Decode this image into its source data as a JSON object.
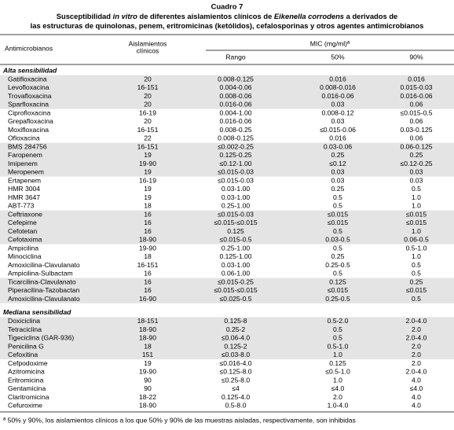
{
  "header": {
    "title": "Cuadro 7",
    "subtitle": [
      [
        "Susceptibilidad ",
        "in vitro",
        " de diferentes aislamientos clínicos de ",
        "Eikenella corrodens",
        " a derivados de"
      ],
      [
        "las estructuras de quinolonas, penem, eritromicinas (ketólidos), cefalosporinas y otros agentes antimicrobianos"
      ]
    ]
  },
  "table": {
    "columns": {
      "name": "Antimicrobianos",
      "isolates": [
        "Aislamientos",
        "clínicos"
      ],
      "mic": "MIC (mg/ml)ª",
      "range": "Rango",
      "p50": "50%",
      "p90": "90%"
    },
    "sections": [
      {
        "title": "Alta sensibilidad",
        "groups": [
          {
            "rows": [
              [
                "Gatifloxacina",
                "20",
                "0.008-0.125",
                "0.016",
                "0.016"
              ],
              [
                "Levofloxacina",
                "16-151",
                "0.004-0.06",
                "0.008-0.016",
                "0.015-0.03"
              ],
              [
                "Trovafloxacina",
                "20",
                "0.008-0.06",
                "0.016-0.06",
                "0.016-0.06"
              ],
              [
                "Sparfloxacina",
                "20",
                "0.016-0.06",
                "0.03",
                "0.06"
              ]
            ]
          },
          {
            "rows": [
              [
                "Ciprofloxacina",
                "16-19",
                "0.004-1.00",
                "0.008-0.12",
                "≤0.015-0.5"
              ],
              [
                "Grepafloxacina",
                "20",
                "0.016-0.06",
                "0.03",
                "0.06"
              ],
              [
                "Moxifloxacina",
                "16-151",
                "0.008-0.25",
                "≤0.015-0.06",
                "0.03-0.125"
              ],
              [
                "Ofloxacina",
                "22",
                "0.008-0.125",
                "0.016",
                "0.06"
              ]
            ]
          },
          {
            "rows": [
              [
                "BMS 284756",
                "16-151",
                "≤0.002-0.25",
                "0.03-0.06",
                "0.06-0.125"
              ],
              [
                "Faropenem",
                "19",
                "0.125-0.25",
                "0.25",
                "0.25"
              ],
              [
                "Imipenem",
                "19-90",
                "≤0.12-1.00",
                "≤0.12",
                "≤0.12-0.25"
              ],
              [
                "Meropenem",
                "19",
                "≤0.015-0.03",
                "0.03",
                "0.03"
              ]
            ]
          },
          {
            "rows": [
              [
                "Ertapenem",
                "16-19",
                "≤0.015-0.03",
                "0.03",
                "0.03"
              ],
              [
                "HMR 3004",
                "19",
                "0.03-1.00",
                "0.25",
                "0.5"
              ],
              [
                "HMR 3647",
                "19",
                "0.03-1.00",
                "0.5",
                "1.0"
              ],
              [
                "ABT-773",
                "18",
                "0.25-1.00",
                "0.5",
                "1.0"
              ]
            ]
          },
          {
            "rows": [
              [
                "Ceftriaxone",
                "16",
                "≤0.015-0.03",
                "≤0.015",
                "≤0.015"
              ],
              [
                "Cefepime",
                "16",
                "≤0.015-≤0.015",
                "≤0.015",
                "≤0.015"
              ],
              [
                "Cefotetan",
                "16",
                "0.125",
                "0.5",
                "1.0"
              ],
              [
                "Cefotaxima",
                "18-90",
                "≤0.015-0.5",
                "0.03-0.5",
                "0.06-0.5"
              ]
            ]
          },
          {
            "rows": [
              [
                "Ampicilina",
                "19-90",
                "0.25-1.00",
                "0.5",
                "0.5-1.0"
              ],
              [
                "Minociclina",
                "18",
                "0.125-1.00",
                "0.25",
                "1.0"
              ],
              [
                "Amoxicilina-Clavulanato",
                "16-151",
                "0.03-1.00",
                "0.25-0.5",
                "0.5"
              ],
              [
                "Ampicilina-Sulbactam",
                "16",
                "0.06-1.00",
                "0.5",
                "0.5"
              ]
            ]
          },
          {
            "rows": [
              [
                "Ticarcilina-Clavulanato",
                "16",
                "≤0.015-0.25",
                "0.125",
                "0.25"
              ],
              [
                "Piperacilina-Tazobactan",
                "16",
                "≤0.015-≤0.015",
                "≤0.015",
                "≤0.015"
              ],
              [
                "Amoxicilina-Clavulanato",
                "16-90",
                "≤0.025-0.5",
                "0.25-0.5",
                "0.5"
              ]
            ]
          }
        ]
      },
      {
        "title": "Mediana sensibilidad",
        "groups": [
          {
            "rows": [
              [
                "Doxiciclina",
                "18-151",
                "0.125-8",
                "0.5-2.0",
                "2.0-4.0"
              ],
              [
                "Tetraciclina",
                "18-90",
                "0.25-2",
                "0.5",
                "2.0"
              ],
              [
                "Tigeciclina (GAR-936)",
                "18-90",
                "≤0.06-4.0",
                "0.5",
                "2.0-4.0"
              ],
              [
                "Penicilina G",
                "18",
                "0.125-2",
                "0.5-1.0",
                "2.0"
              ],
              [
                "Cefoxitina",
                "151",
                "≤0.03-8.0",
                "1.0",
                "2.0"
              ]
            ]
          },
          {
            "rows": [
              [
                "Cefpodoxime",
                "19",
                "≤0.016-4.0",
                "0.125",
                "2.0"
              ],
              [
                "Azitromicina",
                "19-90",
                "≤0.125-8.0",
                "≤0.5-1.0",
                "2.0-4.0"
              ],
              [
                "Eritromicina",
                "90",
                "≤0.25-8.0",
                "1.0",
                "4.0"
              ],
              [
                "Gentamicina",
                "90",
                "≤4",
                "≤4.0",
                "≤4.0"
              ],
              [
                "Claritromicina",
                "18-22",
                "0.125-4.0",
                "2.0",
                "4.0"
              ],
              [
                "Cefuroxime",
                "18-90",
                "0.5-8.0",
                "1.0-4.0",
                "4.0"
              ]
            ]
          }
        ]
      }
    ]
  },
  "footnote": "ª 50% y 90%, los aislamientos clínicos a los que 50% y 90% de las muestras aisladas, respectivamente, son inhibidas"
}
